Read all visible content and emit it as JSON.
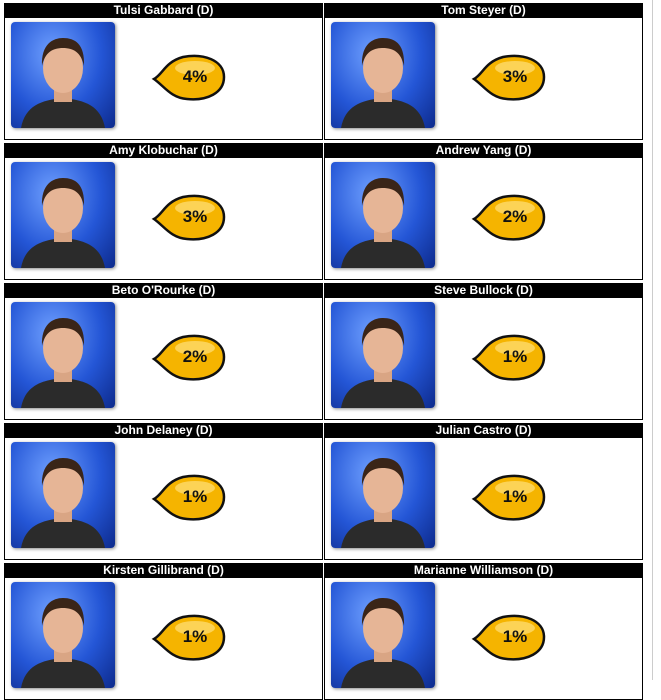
{
  "candidates": [
    {
      "name": "Tulsi Gabbard (D)",
      "percent": "4%"
    },
    {
      "name": "Tom Steyer (D)",
      "percent": "3%"
    },
    {
      "name": "Amy Klobuchar (D)",
      "percent": "3%"
    },
    {
      "name": "Andrew Yang (D)",
      "percent": "2%"
    },
    {
      "name": "Beto O'Rourke (D)",
      "percent": "2%"
    },
    {
      "name": "Steve Bullock (D)",
      "percent": "1%"
    },
    {
      "name": "John Delaney (D)",
      "percent": "1%"
    },
    {
      "name": "Julian Castro (D)",
      "percent": "1%"
    },
    {
      "name": "Kirsten Gillibrand (D)",
      "percent": "1%"
    },
    {
      "name": "Marianne Williamson (D)",
      "percent": "1%"
    }
  ]
}
